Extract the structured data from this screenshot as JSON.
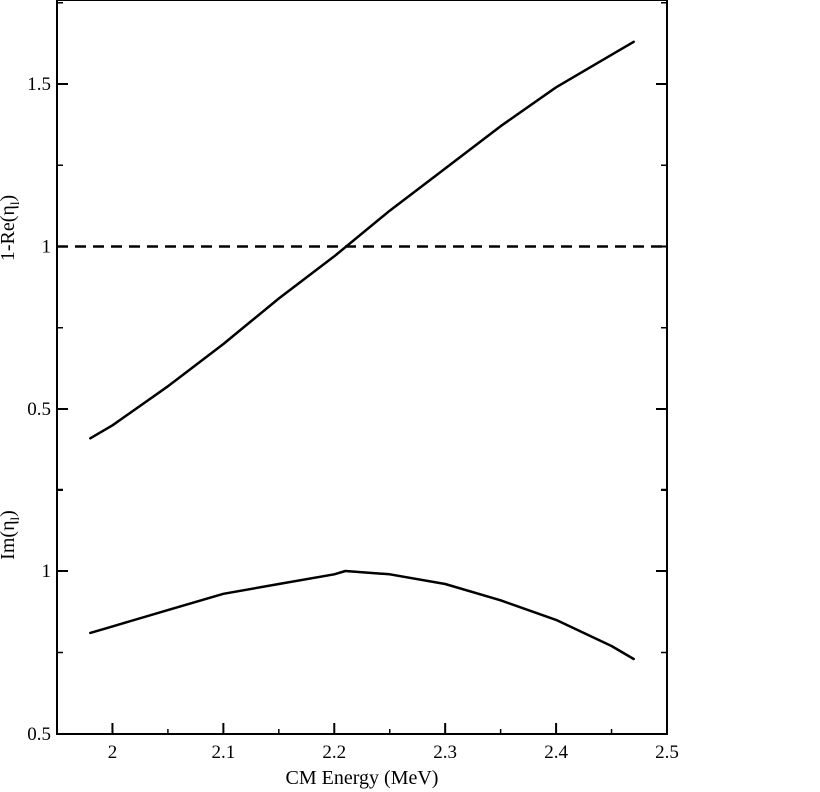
{
  "chart_data": {
    "type": "line",
    "grid": false,
    "xlabel": "CM Energy (MeV)",
    "xlim": [
      1.95,
      2.5
    ],
    "xticks": [
      2,
      2.1,
      2.2,
      2.3,
      2.4,
      2.5
    ],
    "xtick_labels": [
      "2",
      "2.1",
      "2.2",
      "2.3",
      "2.4",
      "2.5"
    ],
    "panels": [
      {
        "ylabel": "1-Re(η_l)",
        "ylabel_display": "1-Re(η",
        "ylabel_sub": "l",
        "ylabel_close": ")",
        "ylim": [
          0.5,
          1.75
        ],
        "yticks": [
          0.5,
          1,
          1.5
        ],
        "ytick_labels": [
          "0.5",
          "1",
          "1.5"
        ],
        "series": [
          {
            "style": "solid",
            "x": [
              1.98,
              2.0,
              2.05,
              2.1,
              2.15,
              2.2,
              2.25,
              2.3,
              2.35,
              2.4,
              2.45,
              2.47
            ],
            "y": [
              0.41,
              0.45,
              0.57,
              0.7,
              0.84,
              0.97,
              1.11,
              1.24,
              1.37,
              1.49,
              1.59,
              1.63
            ]
          },
          {
            "style": "dashed",
            "x": [
              1.95,
              2.5
            ],
            "y": [
              1.0,
              1.0
            ]
          }
        ]
      },
      {
        "ylabel": "Im(η_l)",
        "ylabel_display": "Im(η",
        "ylabel_sub": "l",
        "ylabel_close": ")",
        "ylim": [
          0.5,
          1.0
        ],
        "yticks": [
          0.5,
          1
        ],
        "ytick_labels": [
          "0.5",
          "1"
        ],
        "series": [
          {
            "style": "solid",
            "x": [
              1.98,
              2.0,
              2.05,
              2.1,
              2.15,
              2.2,
              2.21,
              2.25,
              2.3,
              2.35,
              2.4,
              2.45,
              2.47
            ],
            "y": [
              0.81,
              0.83,
              0.88,
              0.93,
              0.96,
              0.99,
              1.0,
              0.99,
              0.96,
              0.91,
              0.85,
              0.77,
              0.73
            ]
          }
        ]
      }
    ]
  }
}
